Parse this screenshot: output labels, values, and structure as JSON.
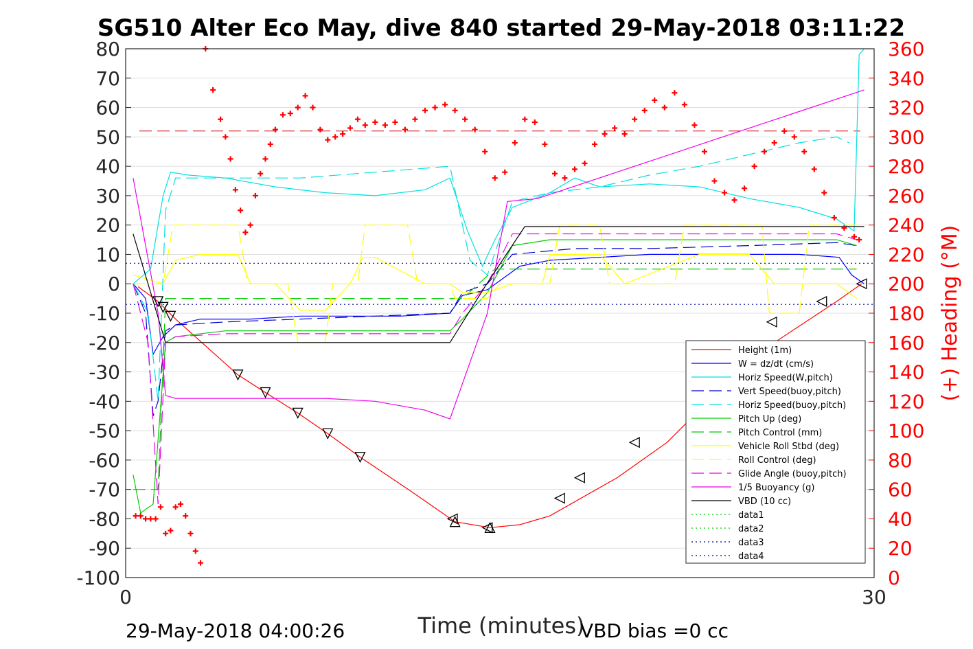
{
  "chart_data": {
    "type": "line",
    "title": "SG510 Alter Eco May, dive 840 started 29-May-2018 03:11:22",
    "xlabel": "Time (minutes)",
    "ylabel_right": "(+) Heading (°M)",
    "xlim": [
      0,
      30
    ],
    "ylim_left": [
      -100,
      80
    ],
    "ylim_right": [
      0,
      360
    ],
    "x_ticks": [
      "0",
      "30"
    ],
    "y_ticks_left": [
      "80",
      "70",
      "60",
      "50",
      "40",
      "30",
      "20",
      "10",
      "0",
      "-10",
      "-20",
      "-30",
      "-40",
      "-50",
      "-60",
      "-70",
      "-80",
      "-90",
      "-100"
    ],
    "y_ticks_right": [
      "360",
      "340",
      "320",
      "300",
      "280",
      "260",
      "240",
      "220",
      "200",
      "180",
      "160",
      "140",
      "120",
      "100",
      "80",
      "60",
      "40",
      "20",
      "0"
    ],
    "grid": true,
    "legend_position": "lower-right",
    "footer_left": "29-May-2018 04:00:26",
    "footer_right": "VBD bias =0 cc",
    "series": [
      {
        "name": "Height (1m)",
        "color": "#ff0000",
        "style": "solid",
        "x": [
          0.5,
          1.3,
          2,
          4.5,
          5.6,
          6.9,
          8.1,
          9.4,
          11.5,
          13.2,
          14.6,
          15.8,
          17,
          19.7,
          21.7,
          23.7,
          26,
          28.5,
          29.5
        ],
        "y": [
          -1,
          -6,
          -12,
          -31,
          -37,
          -44,
          -51,
          -59,
          -71,
          -81,
          -83,
          -82,
          -79,
          -66,
          -54,
          -37,
          -20,
          -6,
          0
        ]
      },
      {
        "name": "W = dz/dt (cm/s)",
        "color": "#0000ff",
        "style": "solid",
        "x": [
          0.3,
          0.8,
          1.1,
          1.5,
          2,
          3,
          5,
          7,
          9,
          11,
          13,
          13.5,
          14.5,
          15.8,
          17,
          19,
          21,
          23,
          25,
          27,
          28.6,
          29.1,
          29.6
        ],
        "y": [
          0,
          -5,
          -24,
          -18,
          -14,
          -12,
          -12,
          -11,
          -11,
          -11,
          -10,
          -4,
          -2,
          6,
          8,
          9,
          10,
          10,
          10,
          10,
          9,
          3,
          0
        ]
      },
      {
        "name": "Horiz Speed(W,pitch)",
        "color": "#00e0e0",
        "style": "solid",
        "x": [
          0.3,
          1,
          1.5,
          1.8,
          2.5,
          4,
          6,
          8,
          10,
          12,
          13,
          13.7,
          14.3,
          14.8,
          15.5,
          17,
          18,
          19,
          21,
          23,
          25,
          27,
          28.5,
          29.2,
          29.4,
          29.6
        ],
        "y": [
          0,
          5,
          30,
          38,
          37,
          36,
          33,
          31,
          30,
          32,
          36,
          18,
          6,
          15,
          26,
          31,
          36,
          33,
          34,
          33,
          29,
          26,
          22,
          18,
          78,
          80
        ]
      },
      {
        "name": "Vert Speed(buoy,pitch)",
        "color": "#0000cc",
        "style": "dashed",
        "x": [
          0.3,
          0.8,
          1.1,
          1.3,
          1.6,
          2,
          4,
          7,
          10,
          13,
          13.5,
          14.5,
          15.5,
          18,
          21,
          25,
          28.5,
          29.3
        ],
        "y": [
          0,
          -10,
          -45,
          -40,
          -16,
          -14,
          -13,
          -12,
          -11,
          -10,
          -3,
          0,
          10,
          12,
          12,
          13,
          14,
          13
        ]
      },
      {
        "name": "Horiz Speed(buoy,pitch)",
        "color": "#00e0e0",
        "style": "dashed",
        "x": [
          0.3,
          0.9,
          1.3,
          1.6,
          2,
          4,
          7,
          10,
          13,
          13.8,
          14.5,
          15.5,
          17,
          19,
          21,
          23,
          25,
          27,
          28.5,
          29
        ],
        "y": [
          0,
          -10,
          -40,
          25,
          36,
          36,
          36,
          38,
          40,
          8,
          3,
          28,
          31,
          33,
          37,
          40,
          44,
          48,
          50,
          48
        ]
      },
      {
        "name": "Pitch Up (deg)",
        "color": "#00cc00",
        "style": "solid",
        "x": [
          0.3,
          0.6,
          1.1,
          1.6,
          2,
          4,
          7,
          10,
          13,
          13.5,
          14.5,
          15.5,
          17,
          20,
          24,
          28.5,
          29.3
        ],
        "y": [
          -65,
          -78,
          -75,
          -20,
          -18,
          -16,
          -16,
          -16,
          -16,
          -12,
          -3,
          13,
          15,
          15,
          15,
          15,
          13
        ]
      },
      {
        "name": "Pitch Control (mm)",
        "color": "#00cc00",
        "style": "dashed",
        "x": [
          0.3,
          1.3,
          1.6,
          13,
          13.5,
          14.8,
          15.2,
          29.3
        ],
        "y": [
          -70,
          -70,
          -5,
          -5,
          -5,
          5,
          5,
          5
        ]
      },
      {
        "name": "Vehicle Roll Stbd (deg)",
        "color": "#ffff00",
        "style": "solid",
        "x": [
          0.3,
          1.5,
          2,
          3,
          4.5,
          5,
          6,
          7,
          8,
          9,
          9.5,
          10,
          12,
          13,
          13.5,
          14.5,
          15.5,
          16.7,
          17,
          19,
          20,
          23,
          25,
          26,
          27,
          28.5,
          29.3
        ],
        "y": [
          3,
          0,
          8,
          10,
          10,
          0,
          0,
          -9,
          -9,
          0,
          9,
          9,
          0,
          0,
          -3,
          -3,
          0,
          0,
          10,
          10,
          0,
          10,
          10,
          0,
          0,
          0,
          -5
        ]
      },
      {
        "name": "Roll Control (deg)",
        "color": "#ffff00",
        "style": "dashed",
        "x": [
          0.3,
          1.5,
          1.9,
          4.5,
          4.9,
          6.5,
          6.9,
          8,
          8.3,
          9.3,
          9.6,
          11.3,
          11.7,
          13,
          13.2,
          14.5,
          15,
          17,
          17.4,
          19,
          19.4,
          22,
          22.4,
          25.5,
          25.8,
          27,
          27.4,
          29.3
        ],
        "y": [
          0,
          0,
          20,
          20,
          0,
          0,
          -20,
          -20,
          0,
          0,
          20,
          20,
          0,
          0,
          -5,
          -5,
          0,
          0,
          20,
          20,
          0,
          0,
          20,
          20,
          -10,
          -10,
          20,
          20
        ]
      },
      {
        "name": "Glide Angle (buoy,pitch)",
        "color": "#ee00ee",
        "style": "dashed",
        "x": [
          0.3,
          0.9,
          1.3,
          1.6,
          2,
          4,
          7,
          10,
          13,
          13.5,
          14.5,
          15.5,
          18,
          21,
          25,
          28.5,
          29.3
        ],
        "y": [
          0,
          -20,
          -75,
          -20,
          -18,
          -17,
          -17,
          -17,
          -17,
          -10,
          0,
          17,
          17,
          17,
          17,
          17,
          15
        ]
      },
      {
        "name": "1/5 Buoyancy (g)",
        "color": "#ee00ee",
        "style": "solid",
        "x": [
          0.3,
          1.3,
          1.6,
          2,
          5,
          8,
          10,
          12,
          13,
          14.5,
          15.3,
          16.5,
          29.6
        ],
        "y": [
          36,
          -10,
          -38,
          -39,
          -39,
          -39,
          -40,
          -43,
          -46,
          -10,
          28,
          29,
          66
        ]
      },
      {
        "name": "VBD (10 cc)",
        "color": "#000000",
        "style": "solid",
        "x": [
          0.3,
          1.6,
          13,
          14.4,
          16,
          29.6
        ],
        "y": [
          17,
          -20,
          -20,
          -1,
          19.5,
          19.5
        ]
      },
      {
        "name": "data1",
        "color": "#00cc00",
        "style": "dotted",
        "x": [],
        "y": []
      },
      {
        "name": "data2",
        "color": "#00cc00",
        "style": "dotted",
        "x": [],
        "y": []
      },
      {
        "name": "data3",
        "color": "#000099",
        "style": "dotted",
        "x": [
          0,
          30
        ],
        "y": [
          7,
          7
        ]
      },
      {
        "name": "data4",
        "color": "#000099",
        "style": "dotted",
        "x": [
          0,
          30
        ],
        "y": [
          -7,
          -7
        ]
      }
    ],
    "heading_series": {
      "axis": "right",
      "color": "#ff0000",
      "marker": "plus",
      "x": [
        0.4,
        0.6,
        0.8,
        1,
        1.2,
        1.4,
        1.6,
        1.8,
        2,
        2.2,
        2.4,
        2.6,
        2.8,
        3,
        3.2,
        3.5,
        3.8,
        4,
        4.2,
        4.4,
        4.6,
        4.8,
        5,
        5.2,
        5.4,
        5.6,
        5.8,
        6,
        6.3,
        6.6,
        6.9,
        7.2,
        7.5,
        7.8,
        8.1,
        8.4,
        8.7,
        9,
        9.3,
        9.6,
        10,
        10.4,
        10.8,
        11.2,
        11.6,
        12,
        12.4,
        12.8,
        13.2,
        13.6,
        14,
        14.4,
        14.8,
        15.2,
        15.6,
        16,
        16.4,
        16.8,
        17.2,
        17.6,
        18,
        18.4,
        18.8,
        19.2,
        19.6,
        20,
        20.4,
        20.8,
        21.2,
        21.6,
        22,
        22.4,
        22.8,
        23.2,
        23.6,
        24,
        24.4,
        24.8,
        25.2,
        25.6,
        26,
        26.4,
        26.8,
        27.2,
        27.6,
        28,
        28.4,
        28.8,
        29.2,
        29.4
      ],
      "y": [
        42,
        42,
        40,
        40,
        40,
        48,
        30,
        32,
        48,
        50,
        42,
        30,
        18,
        10,
        360,
        332,
        312,
        300,
        285,
        264,
        250,
        235,
        240,
        260,
        275,
        285,
        295,
        305,
        315,
        316,
        320,
        328,
        320,
        305,
        298,
        300,
        302,
        306,
        312,
        308,
        310,
        308,
        310,
        305,
        312,
        318,
        320,
        322,
        318,
        312,
        305,
        290,
        272,
        276,
        296,
        312,
        310,
        295,
        275,
        272,
        278,
        282,
        295,
        302,
        306,
        302,
        312,
        318,
        325,
        320,
        330,
        322,
        308,
        290,
        270,
        262,
        257,
        265,
        280,
        290,
        296,
        304,
        300,
        290,
        278,
        262,
        245,
        238,
        232,
        230
      ]
    },
    "heading_reference": {
      "axis": "right",
      "value": 304,
      "color": "#cc0000",
      "style": "dashed"
    },
    "triangle_markers": {
      "up": [
        [
          13.2,
          -81
        ],
        [
          14.6,
          -83
        ]
      ],
      "down": [
        [
          1.3,
          -6
        ],
        [
          1.5,
          -8
        ],
        [
          1.8,
          -11
        ],
        [
          4.5,
          -31
        ],
        [
          5.6,
          -37
        ],
        [
          6.9,
          -44
        ],
        [
          8.1,
          -51
        ],
        [
          9.4,
          -59
        ]
      ],
      "left": [
        [
          13.1,
          -80
        ],
        [
          14.5,
          -83
        ],
        [
          17.4,
          -73
        ],
        [
          18.2,
          -66
        ],
        [
          20.4,
          -54
        ],
        [
          25.9,
          -13
        ],
        [
          27.9,
          -6
        ],
        [
          29.5,
          0
        ]
      ]
    }
  }
}
